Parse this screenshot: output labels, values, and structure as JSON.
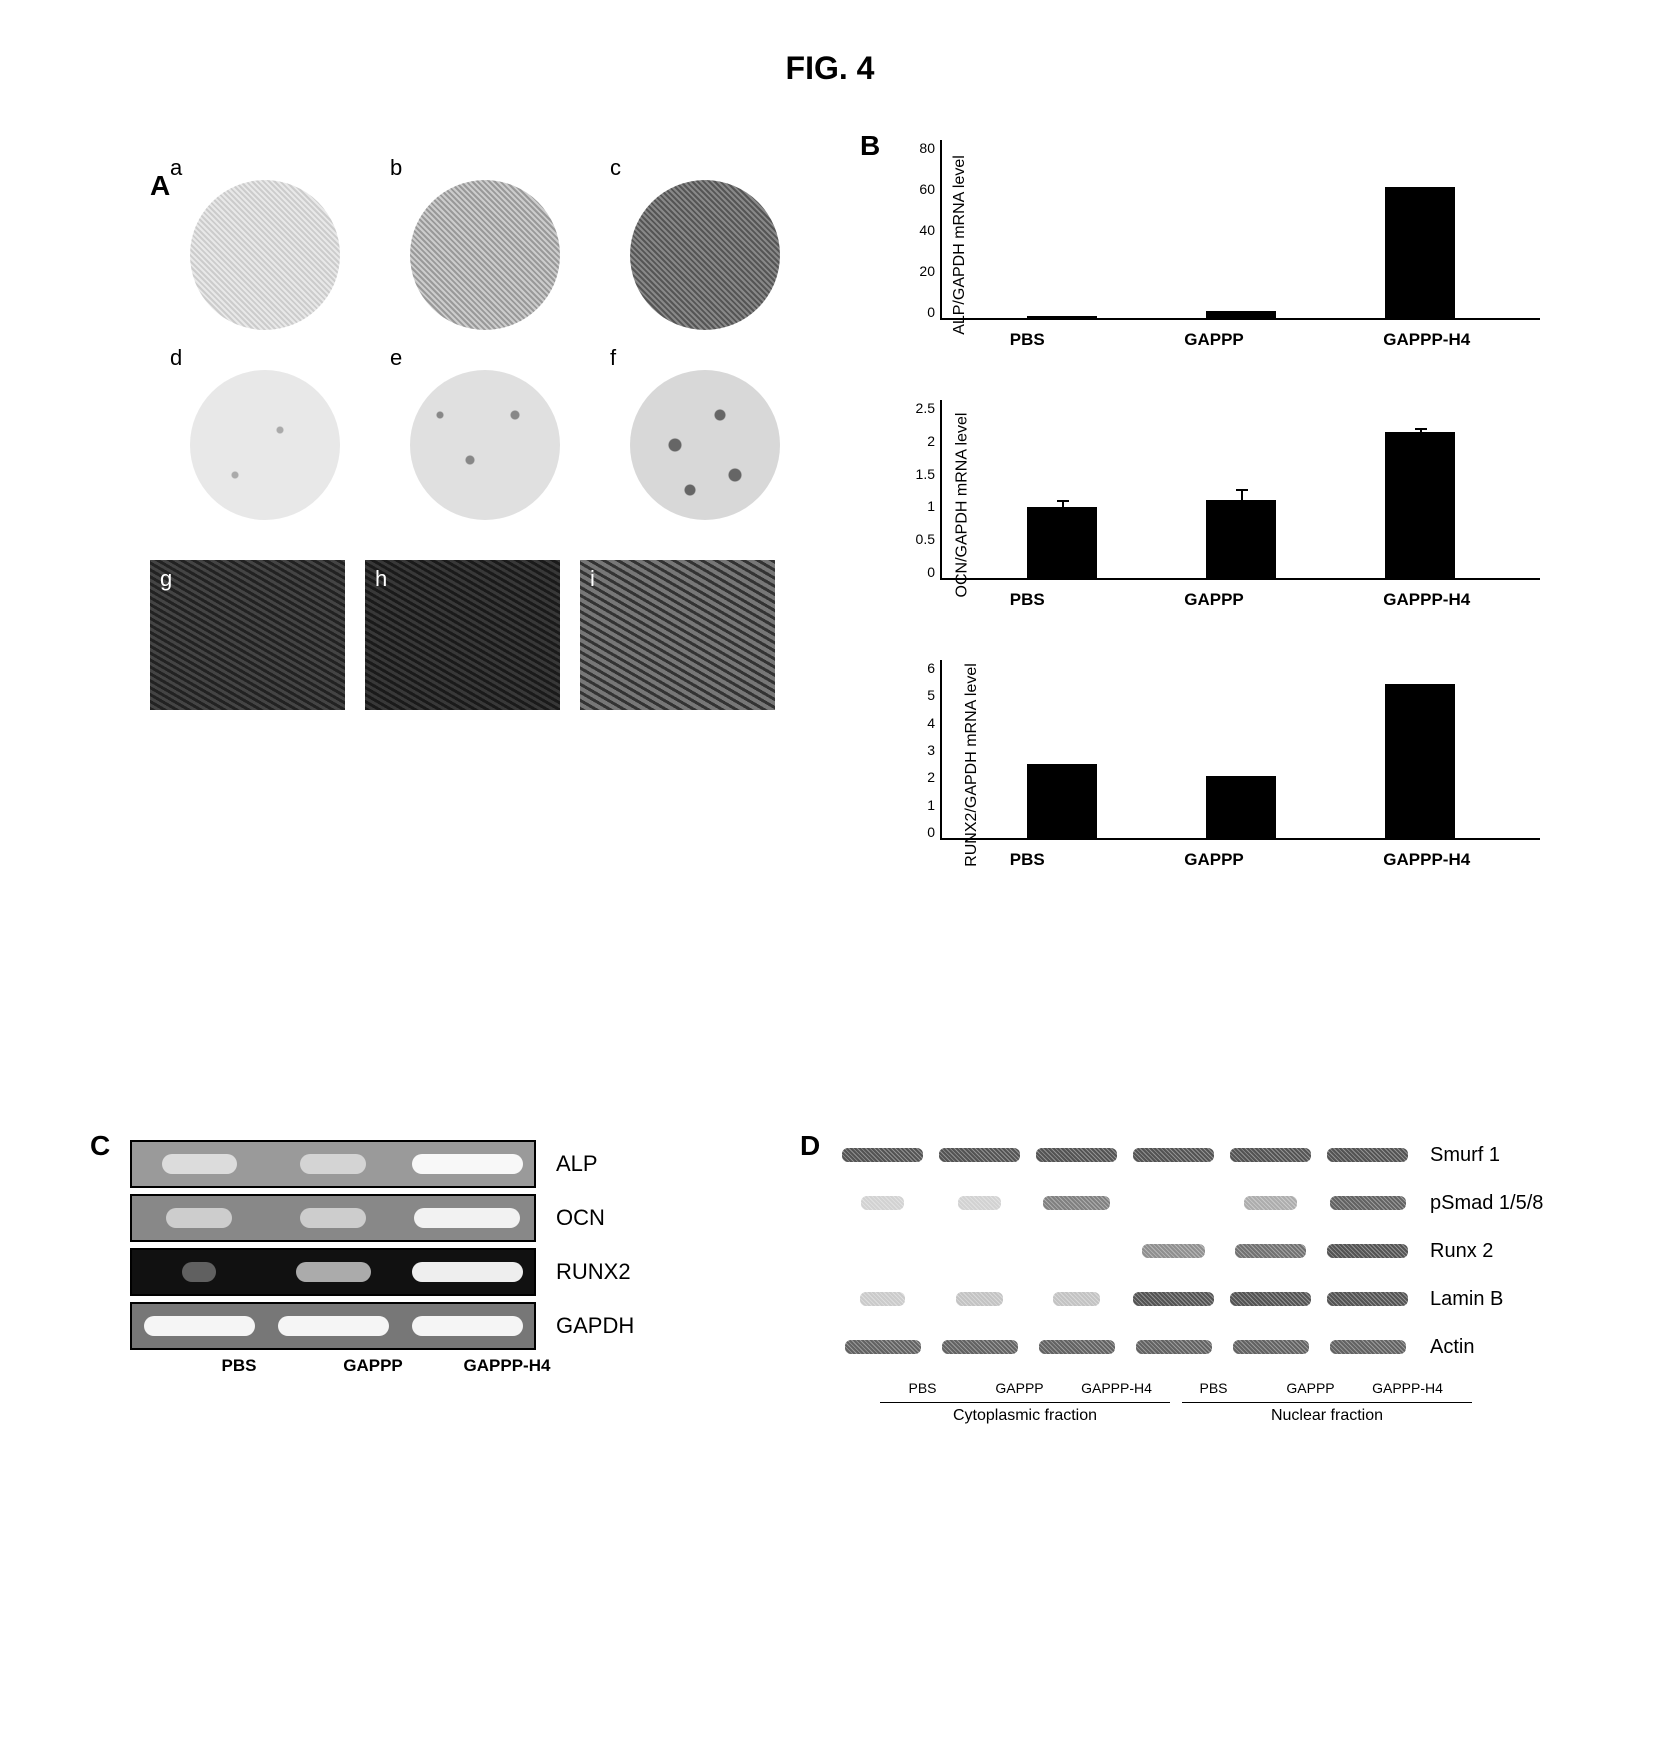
{
  "figure_title": "FIG. 4",
  "panelA": {
    "label": "A",
    "sublabels": [
      "a",
      "b",
      "c",
      "d",
      "e",
      "f",
      "g",
      "h",
      "i"
    ]
  },
  "panelB": {
    "label": "B",
    "xlabels": [
      "PBS",
      "GAPPP",
      "GAPPP-H4"
    ],
    "charts": [
      {
        "ylabel": "ALP/GAPDH mRNA level",
        "ylim": [
          0,
          80
        ],
        "yticks": [
          0,
          20,
          40,
          60,
          80
        ],
        "values": [
          0.5,
          3,
          59
        ],
        "errors": [
          0,
          0,
          0
        ],
        "bar_color": "#000000"
      },
      {
        "ylabel": "OCN/GAPDH mRNA level",
        "ylim": [
          0,
          2.5
        ],
        "yticks": [
          0,
          0.5,
          1,
          1.5,
          2,
          2.5
        ],
        "values": [
          1.0,
          1.1,
          2.05
        ],
        "errors": [
          0.1,
          0.15,
          0.05
        ],
        "bar_color": "#000000"
      },
      {
        "ylabel": "RUNX2/GAPDH mRNA level",
        "ylim": [
          0,
          6
        ],
        "yticks": [
          0,
          1,
          2,
          3,
          4,
          5,
          6
        ],
        "values": [
          2.5,
          2.1,
          5.2
        ],
        "errors": [
          0,
          0,
          0
        ],
        "bar_color": "#000000"
      }
    ]
  },
  "panelC": {
    "label": "C",
    "xlabels": [
      "PBS",
      "GAPPP",
      "GAPPP-H4"
    ],
    "rows": [
      {
        "name": "ALP",
        "bg": "#9a9a9a",
        "intensity": [
          0.5,
          0.4,
          0.9
        ]
      },
      {
        "name": "OCN",
        "bg": "#888888",
        "intensity": [
          0.4,
          0.4,
          0.85
        ]
      },
      {
        "name": "RUNX2",
        "bg": "#111111",
        "intensity": [
          0.05,
          0.5,
          0.9
        ]
      },
      {
        "name": "GAPDH",
        "bg": "#777777",
        "intensity": [
          0.9,
          0.9,
          0.9
        ]
      }
    ]
  },
  "panelD": {
    "label": "D",
    "xlabels": [
      "PBS",
      "GAPPP",
      "GAPPP-H4",
      "PBS",
      "GAPPP",
      "GAPPP-H4"
    ],
    "fractions": [
      "Cytoplasmic fraction",
      "Nuclear fraction"
    ],
    "rows": [
      {
        "name": "Smurf 1",
        "intensity": [
          0.9,
          0.9,
          0.9,
          0.9,
          0.9,
          0.9
        ]
      },
      {
        "name": "pSmad 1/5/8",
        "intensity": [
          0.05,
          0.05,
          0.6,
          0.0,
          0.3,
          0.8
        ]
      },
      {
        "name": "Runx 2",
        "intensity": [
          0.0,
          0.0,
          0.0,
          0.5,
          0.7,
          0.9
        ]
      },
      {
        "name": "Lamin B",
        "intensity": [
          0.1,
          0.15,
          0.15,
          0.9,
          0.9,
          0.9
        ]
      },
      {
        "name": "Actin",
        "intensity": [
          0.8,
          0.8,
          0.8,
          0.8,
          0.8,
          0.8
        ]
      }
    ]
  }
}
